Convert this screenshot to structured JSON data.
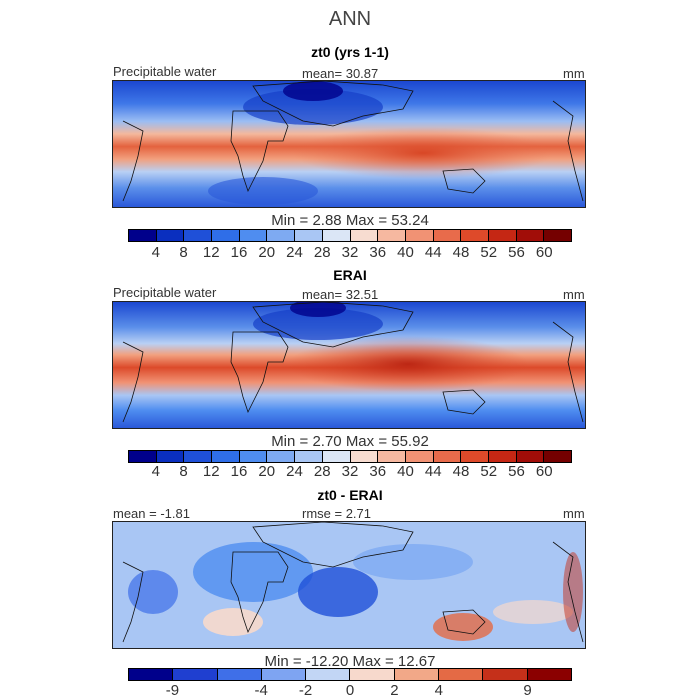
{
  "title": "ANN",
  "panels": [
    {
      "title": "zt0 (yrs 1-1)",
      "left_label": "Precipitable water",
      "center_label": "mean=   30.87",
      "right_label": "mm",
      "minmax": "Min =    2.88  Max =   53.24",
      "colorbar_ticks": [
        "4",
        "8",
        "12",
        "16",
        "20",
        "24",
        "28",
        "32",
        "36",
        "40",
        "44",
        "48",
        "52",
        "56",
        "60"
      ],
      "colorbar_colors": [
        "#00008b",
        "#0a2fbf",
        "#1f50d8",
        "#2f6ee8",
        "#4f8df0",
        "#7eaaf2",
        "#a9c6f4",
        "#dbe6f6",
        "#f7dcd0",
        "#f6b8a0",
        "#f19274",
        "#e86b4b",
        "#de4a2a",
        "#c52714",
        "#a10d08",
        "#750000"
      ],
      "chart_data": {
        "type": "heatmap",
        "title": "zt0 (yrs 1-1)",
        "variable": "Precipitable water",
        "units": "mm",
        "mean": 30.87,
        "min": 2.88,
        "max": 53.24,
        "contour_levels": [
          4,
          8,
          12,
          16,
          20,
          24,
          28,
          32,
          36,
          40,
          44,
          48,
          52,
          56,
          60
        ]
      }
    },
    {
      "title": "ERAI",
      "left_label": "Precipitable water",
      "center_label": "mean=   32.51",
      "right_label": "mm",
      "minmax": "Min =    2.70  Max =   55.92",
      "colorbar_ticks": [
        "4",
        "8",
        "12",
        "16",
        "20",
        "24",
        "28",
        "32",
        "36",
        "40",
        "44",
        "48",
        "52",
        "56",
        "60"
      ],
      "colorbar_colors": [
        "#00008b",
        "#0a2fbf",
        "#1f50d8",
        "#2f6ee8",
        "#4f8df0",
        "#7eaaf2",
        "#a9c6f4",
        "#dbe6f6",
        "#f7dcd0",
        "#f6b8a0",
        "#f19274",
        "#e86b4b",
        "#de4a2a",
        "#c52714",
        "#a10d08",
        "#750000"
      ],
      "chart_data": {
        "type": "heatmap",
        "title": "ERAI",
        "variable": "Precipitable water",
        "units": "mm",
        "mean": 32.51,
        "min": 2.7,
        "max": 55.92,
        "contour_levels": [
          4,
          8,
          12,
          16,
          20,
          24,
          28,
          32,
          36,
          40,
          44,
          48,
          52,
          56,
          60
        ]
      }
    },
    {
      "title": "zt0 - ERAI",
      "left_label": "mean =   -1.81",
      "center_label": "rmse =    2.71",
      "right_label": "mm",
      "minmax": "Min =  -12.20  Max =   12.67",
      "colorbar_ticks": [
        "-9",
        "-4",
        "-2",
        "0",
        "2",
        "4",
        "9"
      ],
      "colorbar_tick_positions": [
        1,
        3,
        4,
        5,
        6,
        7,
        9
      ],
      "colorbar_colors": [
        "#00008b",
        "#1f3fd0",
        "#3f6fe8",
        "#7ea4f2",
        "#c2d6f5",
        "#f7d9cc",
        "#f2a888",
        "#e46a45",
        "#c5301a",
        "#8b0000"
      ],
      "chart_data": {
        "type": "heatmap",
        "title": "zt0 - ERAI",
        "units": "mm",
        "mean": -1.81,
        "rmse": 2.71,
        "min": -12.2,
        "max": 12.67,
        "contour_levels": [
          -9,
          -6,
          -4,
          -3,
          -2,
          -1,
          0,
          1,
          2,
          3,
          4,
          6,
          9
        ]
      }
    }
  ]
}
